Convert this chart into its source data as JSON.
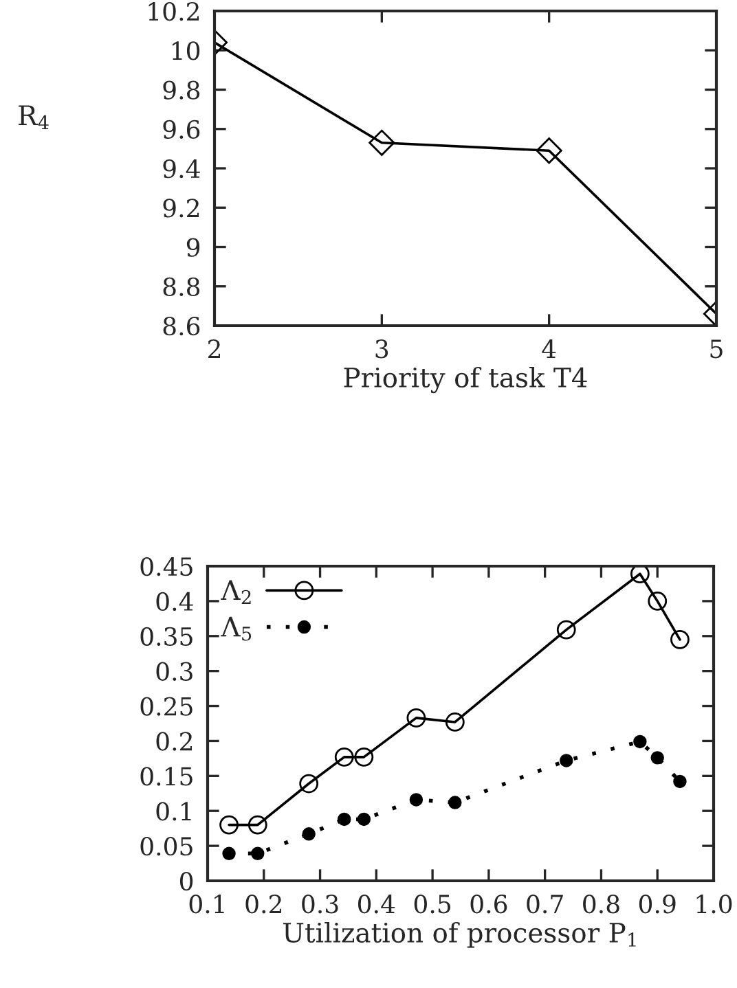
{
  "chart_data": [
    {
      "type": "line",
      "xlabel": "Priority of task T4",
      "ylabel": "R$_{4}$",
      "x": [
        2,
        3,
        4,
        5
      ],
      "xlim": [
        2,
        5
      ],
      "xticks": [
        2,
        3,
        4,
        5
      ],
      "ylim": [
        8.6,
        10.2
      ],
      "yticks": [
        8.6,
        8.8,
        9,
        9.2,
        9.4,
        9.6,
        9.8,
        10,
        10.2
      ],
      "marker": "diamond",
      "line_style": "solid",
      "grid": false,
      "legend": false,
      "series": [
        {
          "color": "#000000",
          "values": [
            10.04,
            9.53,
            9.49,
            8.66
          ]
        }
      ]
    },
    {
      "type": "line",
      "xlabel": "Utilization of processor P$_{1}$",
      "xlim": [
        0.1,
        1.0
      ],
      "xticks": [
        0.1,
        0.2,
        0.3,
        0.4,
        0.5,
        0.6,
        0.7,
        0.8,
        0.9,
        {
          "value": 1.0,
          "label": "1.0"
        }
      ],
      "ylim": [
        0,
        0.45
      ],
      "yticks": [
        0,
        0.05,
        0.1,
        0.15,
        0.2,
        0.25,
        0.3,
        0.35,
        0.4,
        0.45
      ],
      "grid": false,
      "legend": "top left",
      "x": [
        0.138,
        0.189,
        0.28,
        0.343,
        0.378,
        0.471,
        0.54,
        0.738,
        0.869,
        0.9,
        0.94
      ],
      "series": [
        {
          "name": "Λ$_{2}$",
          "color": "#000000",
          "marker": "circle",
          "line_style": "solid",
          "values": [
            0.08,
            0.08,
            0.139,
            0.177,
            0.177,
            0.233,
            0.227,
            0.359,
            0.439,
            0.4,
            0.345
          ]
        },
        {
          "name": "Λ$_{5}$",
          "color": "#000000",
          "marker": "circle",
          "line_style": "dotted",
          "values": [
            0.039,
            0.039,
            0.067,
            0.088,
            0.088,
            0.116,
            0.112,
            0.172,
            0.199,
            0.176,
            0.142
          ]
        }
      ]
    }
  ]
}
